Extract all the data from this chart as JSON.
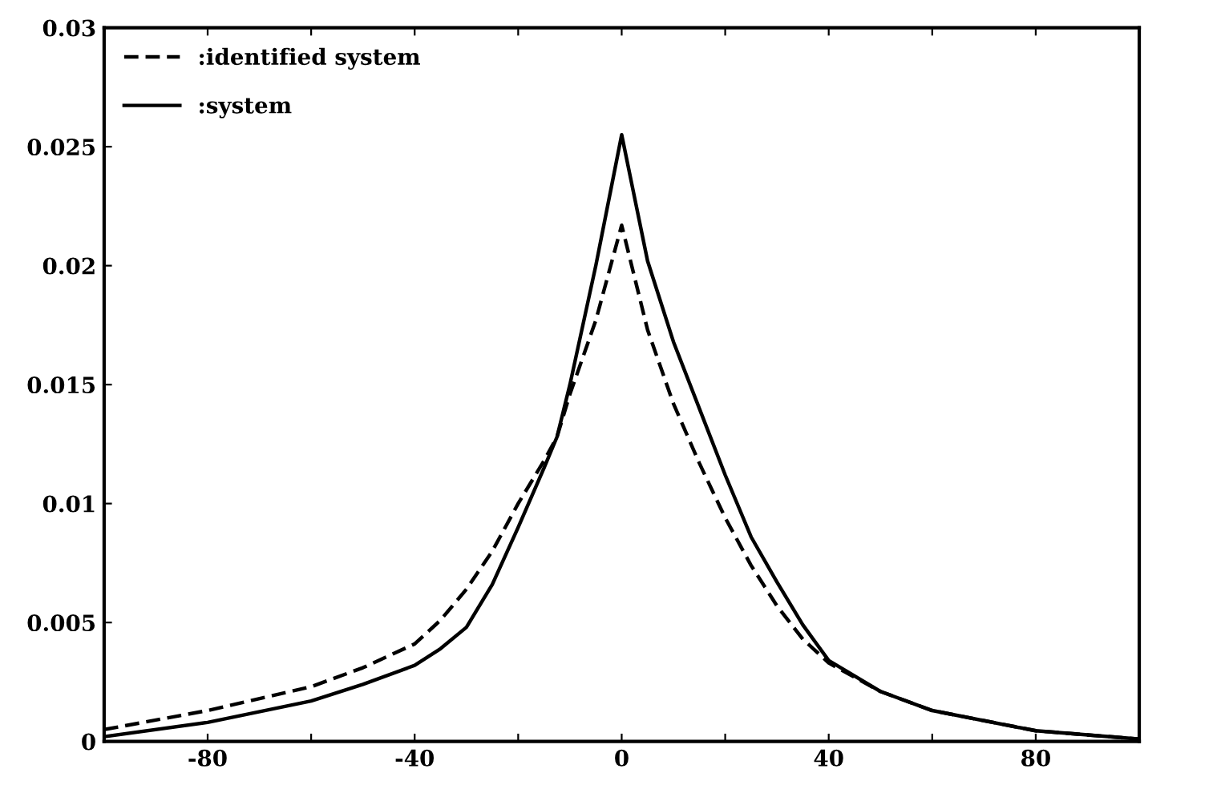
{
  "chart_data": {
    "type": "line",
    "x": [
      -100,
      -80,
      -60,
      -50,
      -40,
      -35,
      -30,
      -25,
      -20,
      -15,
      -12.5,
      -10,
      -5,
      0,
      5,
      10,
      15,
      20,
      25,
      30,
      35,
      40,
      50,
      60,
      80,
      100
    ],
    "series": [
      {
        "name": ":identified system",
        "color": "#000000",
        "line_style": "dashed",
        "values": [
          0.0005,
          0.0013,
          0.0023,
          0.0031,
          0.0041,
          0.0051,
          0.0064,
          0.008,
          0.01,
          0.0118,
          0.0128,
          0.0146,
          0.0177,
          0.0217,
          0.0173,
          0.0142,
          0.0117,
          0.0094,
          0.0074,
          0.0057,
          0.0043,
          0.0033,
          0.0021,
          0.0013,
          0.00045,
          0.0001
        ]
      },
      {
        "name": ":system",
        "color": "#000000",
        "line_style": "solid",
        "values": [
          0.0002,
          0.0008,
          0.0017,
          0.0024,
          0.0032,
          0.0039,
          0.0048,
          0.0066,
          0.009,
          0.0115,
          0.0128,
          0.015,
          0.02,
          0.0255,
          0.0202,
          0.0168,
          0.014,
          0.0112,
          0.0086,
          0.0067,
          0.0049,
          0.0034,
          0.0021,
          0.0013,
          0.00045,
          0.0001
        ]
      }
    ],
    "xlim": [
      -100,
      100
    ],
    "xticks": [
      -80,
      {
        "value": -60,
        "label": null
      },
      -40,
      {
        "value": -20,
        "label": null
      },
      0,
      {
        "value": 20,
        "label": null
      },
      40,
      {
        "value": 60,
        "label": null
      },
      80
    ],
    "ylim": [
      0,
      0.03
    ],
    "yticks": [
      0,
      0.005,
      0.01,
      0.015,
      0.02,
      0.025,
      0.03
    ],
    "grid": false,
    "legend": "top left",
    "marker": "none"
  }
}
